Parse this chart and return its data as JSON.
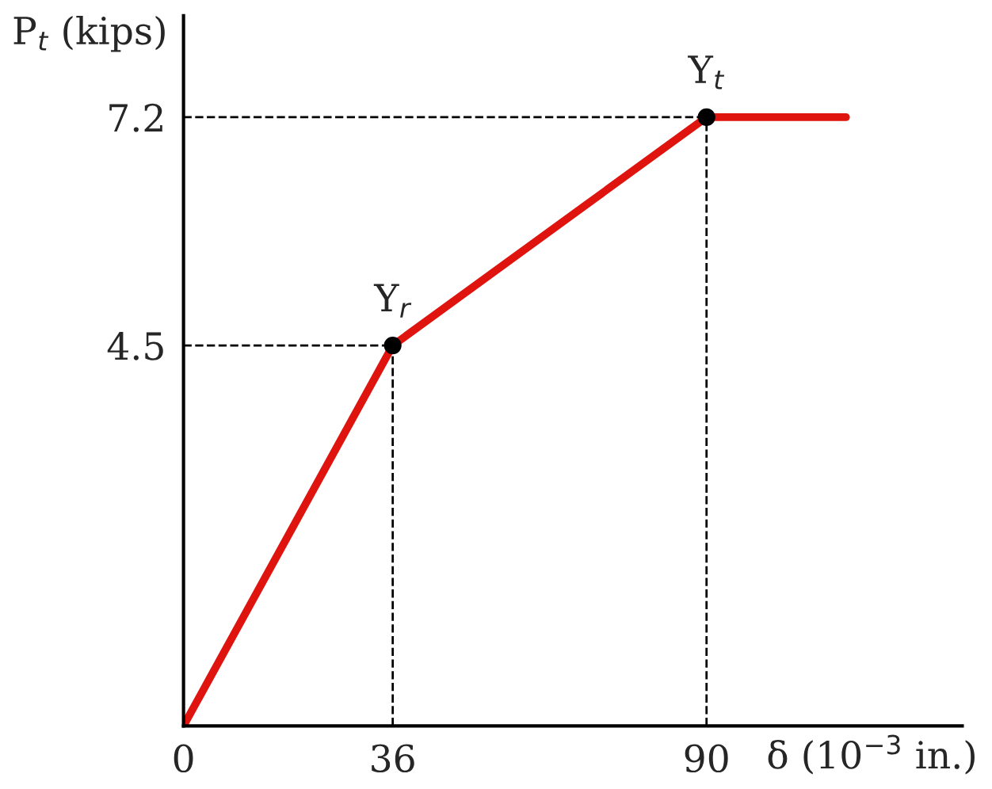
{
  "chart_data": {
    "type": "line",
    "xlabel": "δ (10$^{−3}$ in.)",
    "ylabel": "P$_{t}$ (kips)",
    "x": [
      0,
      36,
      90,
      114
    ],
    "series": [
      {
        "color": "#e0140f",
        "values": [
          0,
          4.5,
          7.2,
          7.2
        ]
      }
    ],
    "xlim": [
      0,
      134
    ],
    "ylim": [
      0,
      8.4
    ],
    "xticks": [
      0,
      36,
      90
    ],
    "yticks": [
      4.5,
      7.2
    ],
    "ref_lines": [
      {
        "axis": "x",
        "value": 36,
        "color": "#000000",
        "line_style": "dashed"
      },
      {
        "axis": "x",
        "value": 90,
        "color": "#000000",
        "line_style": "dashed"
      },
      {
        "axis": "y",
        "value": 4.5,
        "color": "#000000",
        "line_style": "dashed"
      },
      {
        "axis": "y",
        "value": 7.2,
        "color": "#000000",
        "line_style": "dashed"
      }
    ],
    "annotations": [
      {
        "text": "Y$_{r}$",
        "x": 36,
        "y": 4.5
      },
      {
        "text": "Y$_{t}$",
        "x": 90,
        "y": 7.2
      }
    ],
    "grid": false,
    "legend": false,
    "line_style": "solid"
  }
}
